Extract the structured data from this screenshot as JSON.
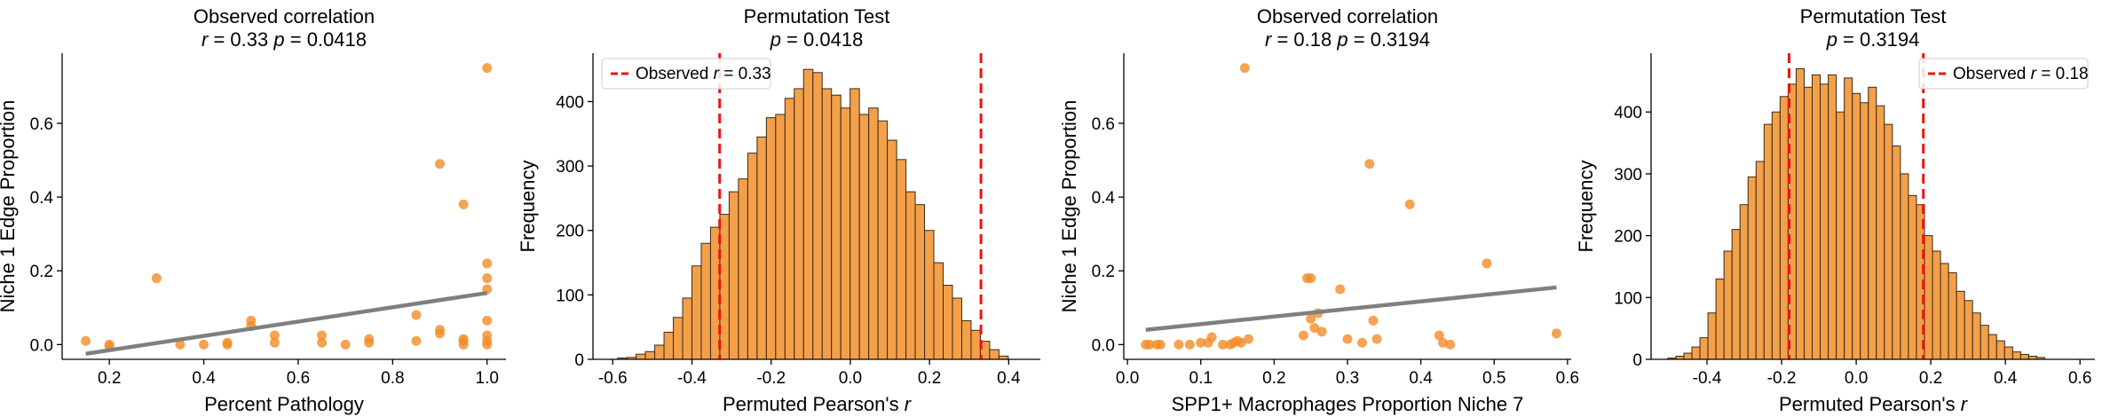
{
  "colors": {
    "point": "#f28c28",
    "bar": "#f4a049",
    "bar_edge": "#3a2a1a",
    "fit": "#7f7f7f",
    "observed": "#ee1111"
  },
  "chart_data": [
    {
      "type": "scatter",
      "title": "Observed correlation",
      "subtitle": {
        "r": "0.33",
        "p": "0.0418"
      },
      "xlabel": "Percent Pathology",
      "ylabel": "Niche 1 Edge Proportion",
      "xlim": [
        0.1,
        1.04
      ],
      "ylim": [
        -0.04,
        0.79
      ],
      "xticks": [
        "0.2",
        "0.4",
        "0.6",
        "0.8",
        "1.0"
      ],
      "yticks": [
        "0.0",
        "0.2",
        "0.4",
        "0.6"
      ],
      "grid": false,
      "points": [
        [
          0.15,
          0.01
        ],
        [
          0.2,
          0.0
        ],
        [
          0.2,
          -0.005
        ],
        [
          0.3,
          0.18
        ],
        [
          0.35,
          0.0
        ],
        [
          0.4,
          0.0
        ],
        [
          0.45,
          0.0
        ],
        [
          0.45,
          0.005
        ],
        [
          0.5,
          0.065
        ],
        [
          0.5,
          0.05
        ],
        [
          0.55,
          0.025
        ],
        [
          0.55,
          0.005
        ],
        [
          0.65,
          0.025
        ],
        [
          0.65,
          0.005
        ],
        [
          0.7,
          0.0
        ],
        [
          0.75,
          0.015
        ],
        [
          0.75,
          0.005
        ],
        [
          0.85,
          0.08
        ],
        [
          0.85,
          0.01
        ],
        [
          0.9,
          0.49
        ],
        [
          0.9,
          0.04
        ],
        [
          0.9,
          0.03
        ],
        [
          0.95,
          0.38
        ],
        [
          0.95,
          0.01
        ],
        [
          0.95,
          0.0
        ],
        [
          0.95,
          0.015
        ],
        [
          1.0,
          0.75
        ],
        [
          1.0,
          0.22
        ],
        [
          1.0,
          0.18
        ],
        [
          1.0,
          0.15
        ],
        [
          1.0,
          0.065
        ],
        [
          1.0,
          0.025
        ],
        [
          1.0,
          0.01
        ],
        [
          1.0,
          0.0
        ]
      ],
      "fit": {
        "x": [
          0.15,
          1.0
        ],
        "y": [
          -0.025,
          0.14
        ]
      }
    },
    {
      "type": "bar",
      "title": "Permutation Test",
      "subtitle": {
        "p": "0.0418"
      },
      "xlabel": "Permuted Pearson's r",
      "ylabel": "Frequency",
      "xlim": [
        -0.65,
        0.48
      ],
      "ylim": [
        0,
        475
      ],
      "xticks": [
        "-0.6",
        "-0.4",
        "-0.2",
        "0.0",
        "0.2",
        "0.4"
      ],
      "yticks": [
        "0",
        "100",
        "200",
        "300",
        "400"
      ],
      "grid": false,
      "legend": {
        "position": "top-left",
        "label": "Observed r = 0.33"
      },
      "observed_lines": [
        -0.33,
        0.33
      ],
      "bins": {
        "start": -0.588,
        "width": 0.0235,
        "counts": [
          2,
          3,
          8,
          12,
          22,
          42,
          65,
          95,
          145,
          180,
          205,
          225,
          260,
          280,
          320,
          345,
          375,
          380,
          405,
          420,
          450,
          445,
          420,
          410,
          390,
          420,
          380,
          390,
          370,
          340,
          310,
          260,
          240,
          200,
          150,
          115,
          95,
          60,
          45,
          28,
          15,
          5
        ]
      }
    },
    {
      "type": "scatter",
      "title": "Observed correlation",
      "subtitle": {
        "r": "0.18",
        "p": "0.3194"
      },
      "xlabel": "SPP1+ Macrophages Proportion Niche 7",
      "ylabel": "Niche 1 Edge Proportion",
      "xlim": [
        -0.005,
        0.605
      ],
      "ylim": [
        -0.04,
        0.79
      ],
      "xticks": [
        "0.0",
        "0.1",
        "0.2",
        "0.3",
        "0.4",
        "0.5",
        "0.6"
      ],
      "yticks": [
        "0.0",
        "0.2",
        "0.4",
        "0.6"
      ],
      "grid": false,
      "points": [
        [
          0.025,
          0.0
        ],
        [
          0.03,
          0.0
        ],
        [
          0.04,
          0.0
        ],
        [
          0.045,
          0.0
        ],
        [
          0.07,
          0.0
        ],
        [
          0.085,
          0.0
        ],
        [
          0.1,
          0.005
        ],
        [
          0.11,
          0.005
        ],
        [
          0.115,
          0.02
        ],
        [
          0.13,
          0.0
        ],
        [
          0.14,
          0.0
        ],
        [
          0.145,
          0.005
        ],
        [
          0.15,
          0.01
        ],
        [
          0.155,
          0.005
        ],
        [
          0.16,
          0.75
        ],
        [
          0.165,
          0.015
        ],
        [
          0.24,
          0.025
        ],
        [
          0.245,
          0.18
        ],
        [
          0.25,
          0.18
        ],
        [
          0.25,
          0.07
        ],
        [
          0.255,
          0.045
        ],
        [
          0.26,
          0.085
        ],
        [
          0.265,
          0.035
        ],
        [
          0.29,
          0.15
        ],
        [
          0.3,
          0.015
        ],
        [
          0.32,
          0.005
        ],
        [
          0.33,
          0.49
        ],
        [
          0.335,
          0.065
        ],
        [
          0.34,
          0.015
        ],
        [
          0.385,
          0.38
        ],
        [
          0.425,
          0.025
        ],
        [
          0.43,
          0.005
        ],
        [
          0.44,
          0.0
        ],
        [
          0.49,
          0.22
        ],
        [
          0.585,
          0.03
        ]
      ],
      "fit": {
        "x": [
          0.025,
          0.585
        ],
        "y": [
          0.04,
          0.155
        ]
      }
    },
    {
      "type": "bar",
      "title": "Permutation Test",
      "subtitle": {
        "p": "0.3194"
      },
      "xlabel": "Permuted Pearson's r",
      "ylabel": "Frequency",
      "xlim": [
        -0.55,
        0.64
      ],
      "ylim": [
        0,
        495
      ],
      "xticks": [
        "-0.4",
        "-0.2",
        "0.0",
        "0.2",
        "0.4",
        "0.6"
      ],
      "yticks": [
        "0",
        "100",
        "200",
        "300",
        "400"
      ],
      "grid": false,
      "legend": {
        "position": "top-right",
        "label": "Observed r = 0.18"
      },
      "observed_lines": [
        -0.18,
        0.18
      ],
      "bins": {
        "start": -0.505,
        "width": 0.0215,
        "counts": [
          2,
          5,
          10,
          20,
          35,
          75,
          130,
          175,
          210,
          250,
          295,
          320,
          380,
          400,
          425,
          445,
          470,
          440,
          460,
          445,
          460,
          400,
          455,
          430,
          415,
          440,
          410,
          380,
          345,
          300,
          265,
          250,
          200,
          175,
          155,
          140,
          110,
          95,
          75,
          55,
          40,
          30,
          20,
          12,
          8,
          5,
          3
        ]
      }
    }
  ]
}
